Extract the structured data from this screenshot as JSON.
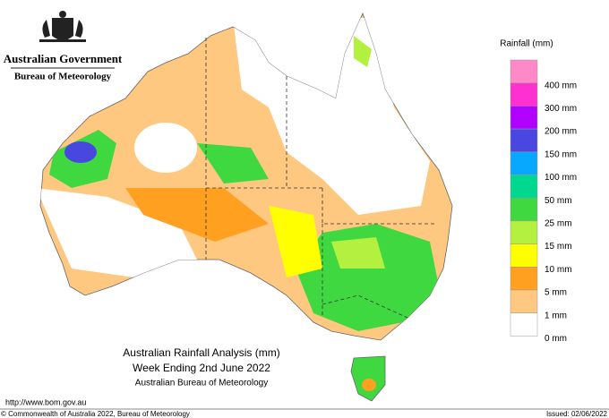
{
  "header": {
    "government": "Australian Government",
    "agency": "Bureau of Meteorology"
  },
  "legend": {
    "title": "Rainfall (mm)",
    "top_color": "#ff88c8",
    "items": [
      {
        "color": "#ff30d0",
        "label": "400 mm"
      },
      {
        "color": "#b000ff",
        "label": "300 mm"
      },
      {
        "color": "#4848e0",
        "label": "200 mm"
      },
      {
        "color": "#08a8ff",
        "label": "150 mm"
      },
      {
        "color": "#00d890",
        "label": "100 mm"
      },
      {
        "color": "#40d840",
        "label": "50 mm"
      },
      {
        "color": "#b4f040",
        "label": "25 mm"
      },
      {
        "color": "#ffff00",
        "label": "15 mm"
      },
      {
        "color": "#ffa020",
        "label": "10 mm"
      },
      {
        "color": "#ffc880",
        "label": "5 mm"
      },
      {
        "color": "#ffffff",
        "label": "1 mm"
      }
    ],
    "bottom_label": "0 mm"
  },
  "map_title": {
    "line1": "Australian Rainfall Analysis (mm)",
    "line2": "Week Ending 2nd June 2022",
    "line3": "Australian Bureau of Meteorology"
  },
  "footer": {
    "url": "http://www.bom.gov.au",
    "copyright": "© Commonwealth of Australia 2022, Bureau of Meteorology",
    "issued": "Issued: 02/06/2022"
  }
}
